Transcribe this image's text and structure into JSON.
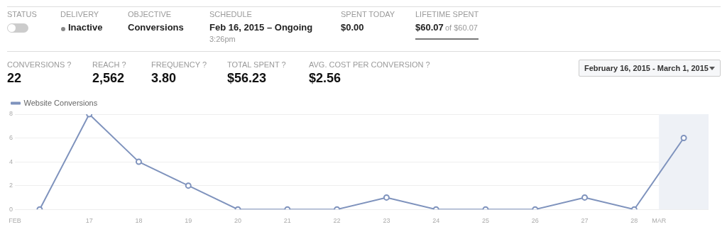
{
  "chart_data": [
    {
      "type": "other",
      "annotations": [
        "STATUS",
        "DELIVERY",
        "Inactive",
        "OBJECTIVE",
        "Conversions",
        "SCHEDULE",
        "Feb 16, 2015 – Ongoing",
        "3:26pm",
        "SPENT TODAY",
        "$0.00",
        "LIFETIME SPENT",
        "$60.07",
        "of $60.07",
        "CONVERSIONS ?",
        "22",
        "REACH ?",
        "2,562",
        "FREQUENCY ?",
        "3.80",
        "TOTAL SPENT ?",
        "$56.23",
        "AVG. COST PER CONVERSION ?",
        "$2.56",
        "February 16, 2015 - March 1, 2015"
      ]
    },
    {
      "type": "line",
      "x": [
        "--02-16T12:00",
        "--02-17T12:00",
        "--02-18T12:00",
        "--02-19T12:00",
        "--02-20T12:00",
        "--02-21T12:00",
        "--02-22T12:00",
        "--02-23T12:00",
        "--02-24T12:00",
        "--02-25T12:00",
        "--02-26T12:00",
        "--02-27T12:00",
        "--02-28T12:00",
        "--03-01T12:00"
      ],
      "series": [
        {
          "name": "Website Conversions",
          "color": "#7f93bd",
          "values": [
            0,
            8,
            4,
            2,
            0,
            0,
            0,
            1,
            0,
            0,
            0,
            1,
            0,
            6
          ]
        }
      ],
      "xlim": [
        "--02-16",
        "--03-02"
      ],
      "xticks": [
        {
          "value": "--02-16",
          "label": "FEB"
        },
        {
          "value": "--02-17T12:00",
          "label": "17"
        },
        {
          "value": "--02-18T12:00",
          "label": "18"
        },
        {
          "value": "--02-19T12:00",
          "label": "19"
        },
        {
          "value": "--02-20T12:00",
          "label": "20"
        },
        {
          "value": "--02-21T12:00",
          "label": "21"
        },
        {
          "value": "--02-22T12:00",
          "label": "22"
        },
        {
          "value": "--02-23T12:00",
          "label": "23"
        },
        {
          "value": "--02-24T12:00",
          "label": "24"
        },
        {
          "value": "--02-25T12:00",
          "label": "25"
        },
        {
          "value": "--02-26T12:00",
          "label": "26"
        },
        {
          "value": "--02-27T12:00",
          "label": "27"
        },
        {
          "value": "--02-28T12:00",
          "label": "28"
        },
        {
          "value": "--03-01",
          "label": "MAR"
        }
      ],
      "ylim": [
        0,
        8
      ],
      "yticks": [
        0,
        2,
        4,
        6,
        8
      ],
      "bands": [
        {
          "axis": "x",
          "from": "--03-01",
          "to": "--03-02",
          "color": "#eef1f6"
        }
      ],
      "grid": "y",
      "legend": "top left",
      "marker": "circle",
      "line_style": "solid"
    }
  ]
}
